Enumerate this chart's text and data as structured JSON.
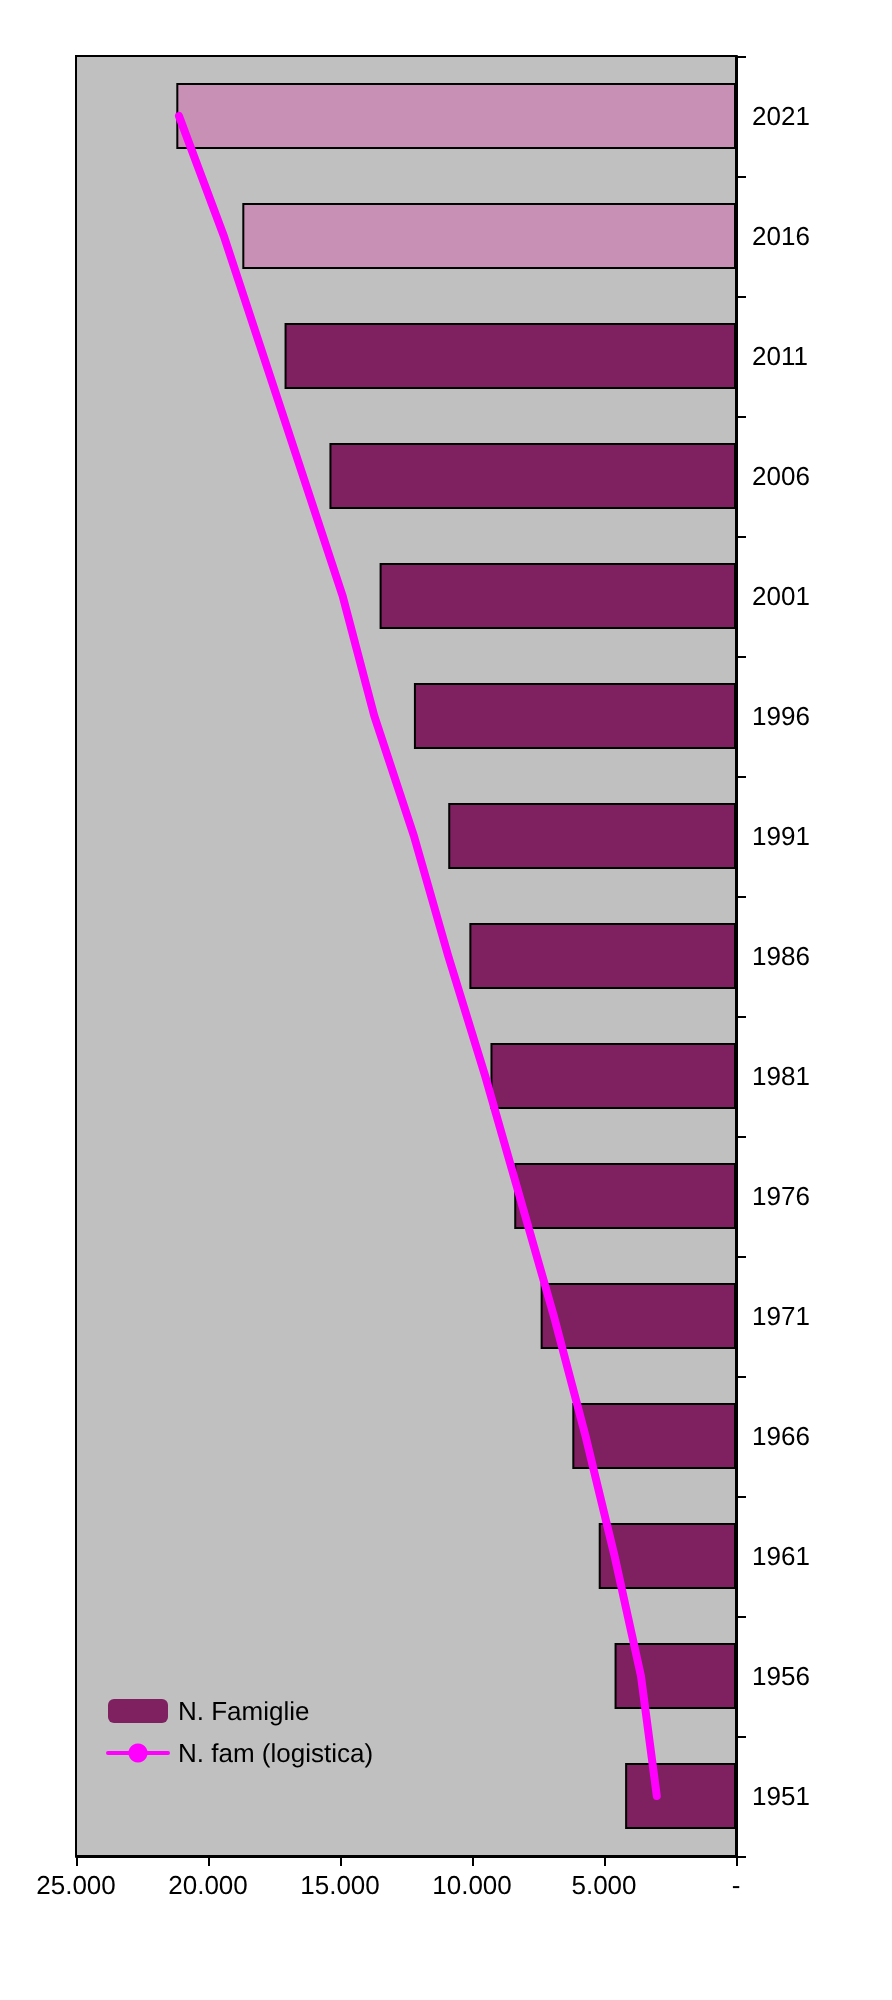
{
  "chart_data": {
    "type": "bar",
    "orientation": "horizontal",
    "categories": [
      "2021",
      "2016",
      "2011",
      "2006",
      "2001",
      "1996",
      "1991",
      "1986",
      "1981",
      "1976",
      "1971",
      "1966",
      "1961",
      "1956",
      "1951"
    ],
    "series": [
      {
        "name": "N. Famiglie",
        "color": "#7f2060",
        "colors": [
          "#c890b4",
          "#c890b4",
          "#7f2060",
          "#7f2060",
          "#7f2060",
          "#7f2060",
          "#7f2060",
          "#7f2060",
          "#7f2060",
          "#7f2060",
          "#7f2060",
          "#7f2060",
          "#7f2060",
          "#7f2060",
          "#7f2060"
        ],
        "values": [
          21200,
          18700,
          17100,
          15400,
          13500,
          12200,
          10900,
          10100,
          9300,
          8400,
          7400,
          6200,
          5200,
          4600,
          4200
        ]
      },
      {
        "name": "N. fam (logistica)",
        "type": "line",
        "color": "#ff00ff",
        "values": [
          21100,
          19400,
          17900,
          16400,
          14900,
          13700,
          12200,
          10900,
          9500,
          8200,
          6900,
          5700,
          4600,
          3600,
          3000
        ]
      }
    ],
    "xlim": [
      25000,
      0
    ],
    "xticks": [
      {
        "value": 25000,
        "label": "25.000"
      },
      {
        "value": 20000,
        "label": "20.000"
      },
      {
        "value": 15000,
        "label": "15.000"
      },
      {
        "value": 10000,
        "label": "10.000"
      },
      {
        "value": 5000,
        "label": "5.000"
      },
      {
        "value": 0,
        "label": "-"
      }
    ],
    "grid": false,
    "legend": "bottom left",
    "marker": "none",
    "line_style": "solid"
  }
}
